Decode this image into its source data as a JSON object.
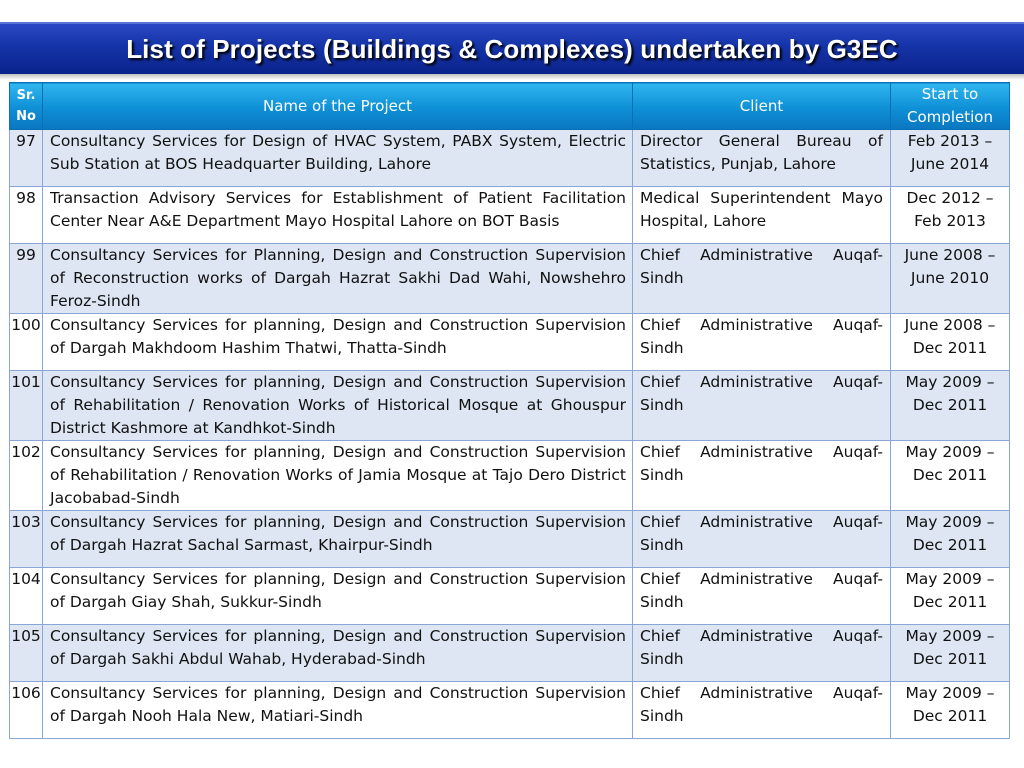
{
  "title": "List of Projects (Buildings & Complexes) undertaken by G3EC",
  "headers": {
    "sr": "Sr. No",
    "name": "Name of the Project",
    "client": "Client",
    "period": "Start to Completion"
  },
  "rows": [
    {
      "sr": "97",
      "name": "Consultancy Services for Design of HVAC System, PABX System, Electric Sub Station at BOS Headquarter Building, Lahore",
      "client": "Director General Bureau of Statistics, Punjab, Lahore",
      "period": "Feb 2013 – June 2014"
    },
    {
      "sr": "98",
      "name": "Transaction Advisory Services for Establishment of Patient Facilitation Center Near A&E Department Mayo Hospital Lahore on BOT Basis",
      "client": "Medical Superintendent Mayo Hospital, Lahore",
      "period": "Dec 2012 – Feb 2013"
    },
    {
      "sr": "99",
      "name": "Consultancy Services for Planning, Design and Construction Supervision of Reconstruction works of  Dargah Hazrat Sakhi Dad Wahi, Nowshehro Feroz-Sindh",
      "client": "Chief Administrative Auqaf-Sindh",
      "period": "June 2008 – June 2010"
    },
    {
      "sr": "100",
      "name": "Consultancy Services for planning, Design and Construction Supervision of Dargah Makhdoom Hashim Thatwi, Thatta-Sindh",
      "client": "Chief Administrative Auqaf-Sindh",
      "period": "June 2008 – Dec 2011"
    },
    {
      "sr": "101",
      "name": "Consultancy Services for planning, Design and Construction Supervision of Rehabilitation / Renovation Works of Historical Mosque at Ghouspur District Kashmore at Kandhkot-Sindh",
      "client": "Chief Administrative Auqaf-Sindh",
      "period": "May 2009 – Dec 2011"
    },
    {
      "sr": "102",
      "name": "Consultancy Services for planning, Design and Construction Supervision of Rehabilitation / Renovation  Works of Jamia Mosque at Tajo Dero District Jacobabad-Sindh",
      "client": "Chief Administrative Auqaf-Sindh",
      "period": "May 2009 – Dec 2011"
    },
    {
      "sr": "103",
      "name": "Consultancy Services for planning, Design and Construction Supervision of Dargah Hazrat Sachal Sarmast, Khairpur-Sindh",
      "client": "Chief Administrative Auqaf-Sindh",
      "period": "May 2009 – Dec 2011"
    },
    {
      "sr": "104",
      "name": "Consultancy Services for planning, Design and Construction Supervision of Dargah Giay Shah, Sukkur-Sindh",
      "client": "Chief Administrative Auqaf-Sindh",
      "period": "May 2009 – Dec 2011"
    },
    {
      "sr": "105",
      "name": "Consultancy Services for planning, Design and Construction Supervision of Dargah Sakhi Abdul Wahab, Hyderabad-Sindh",
      "client": "Chief Administrative Auqaf-Sindh",
      "period": "May 2009 – Dec 2011"
    },
    {
      "sr": "106",
      "name": "Consultancy Services for planning, Design and Construction Supervision of Dargah Nooh Hala New, Matiari-Sindh",
      "client": "Chief Administrative Auqaf-Sindh",
      "period": "May 2009 – Dec 2011"
    }
  ]
}
